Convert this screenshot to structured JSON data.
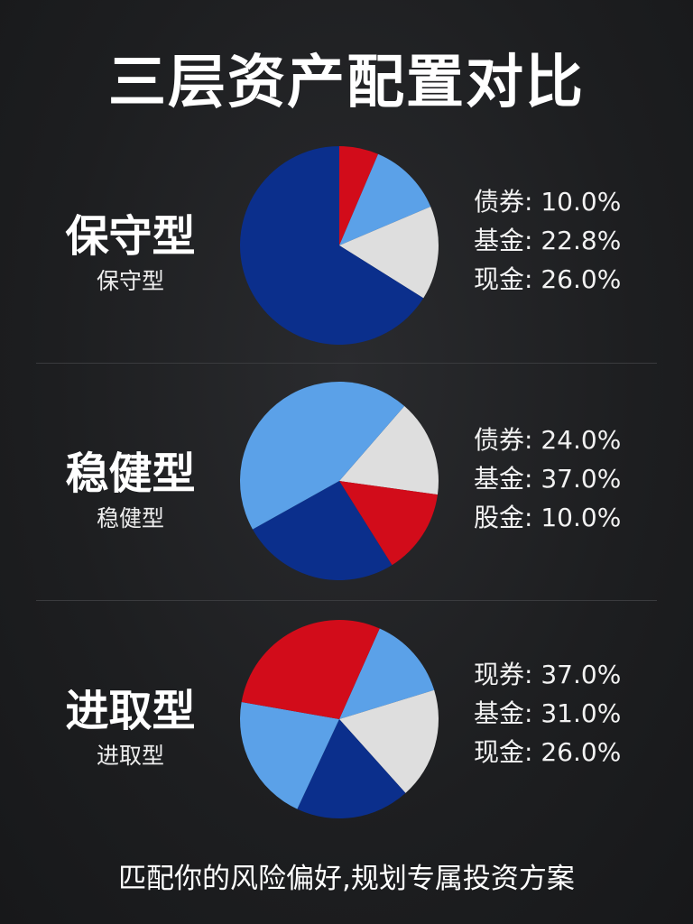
{
  "title": "三层资产配置对比",
  "footer": "匹配你的风险偏好,规划专属投资方案",
  "colors": {
    "dark_blue": "#0b2f8c",
    "light_blue": "#5ba1e8",
    "gray": "#dedede",
    "red": "#d20c1a"
  },
  "chart_data": [
    {
      "type": "pie",
      "title": "保守型",
      "subtitle": "保守型",
      "slices": [
        {
          "color": "red",
          "value": 6.4
        },
        {
          "color": "light_blue",
          "value": 12.2
        },
        {
          "color": "gray",
          "value": 15.3
        },
        {
          "color": "dark_blue",
          "value": 66.1
        }
      ],
      "legend": [
        {
          "label": "债券:",
          "value": "10.0%"
        },
        {
          "label": "基金:",
          "value": "22.8%"
        },
        {
          "label": "现金:",
          "value": "26.0%"
        }
      ]
    },
    {
      "type": "pie",
      "title": "稳健型",
      "subtitle": "稳健型",
      "slices": [
        {
          "color": "gray",
          "value": 15.8
        },
        {
          "color": "red",
          "value": 13.9
        },
        {
          "color": "dark_blue",
          "value": 25.8
        },
        {
          "color": "light_blue",
          "value": 44.5
        }
      ],
      "legend": [
        {
          "label": "债券:",
          "value": "24.0%"
        },
        {
          "label": "基金:",
          "value": "37.0%"
        },
        {
          "label": "股金:",
          "value": "10.0%"
        }
      ]
    },
    {
      "type": "pie",
      "title": "进取型",
      "subtitle": "进取型",
      "slices": [
        {
          "color": "light_blue",
          "value": 13.6
        },
        {
          "color": "gray",
          "value": 18.1
        },
        {
          "color": "dark_blue",
          "value": 18.6
        },
        {
          "color": "light_blue",
          "value": 20.8
        },
        {
          "color": "red",
          "value": 28.9
        }
      ],
      "legend": [
        {
          "label": "现券:",
          "value": "37.0%"
        },
        {
          "label": "基金:",
          "value": "31.0%"
        },
        {
          "label": "现金:",
          "value": "26.0%"
        }
      ]
    }
  ]
}
